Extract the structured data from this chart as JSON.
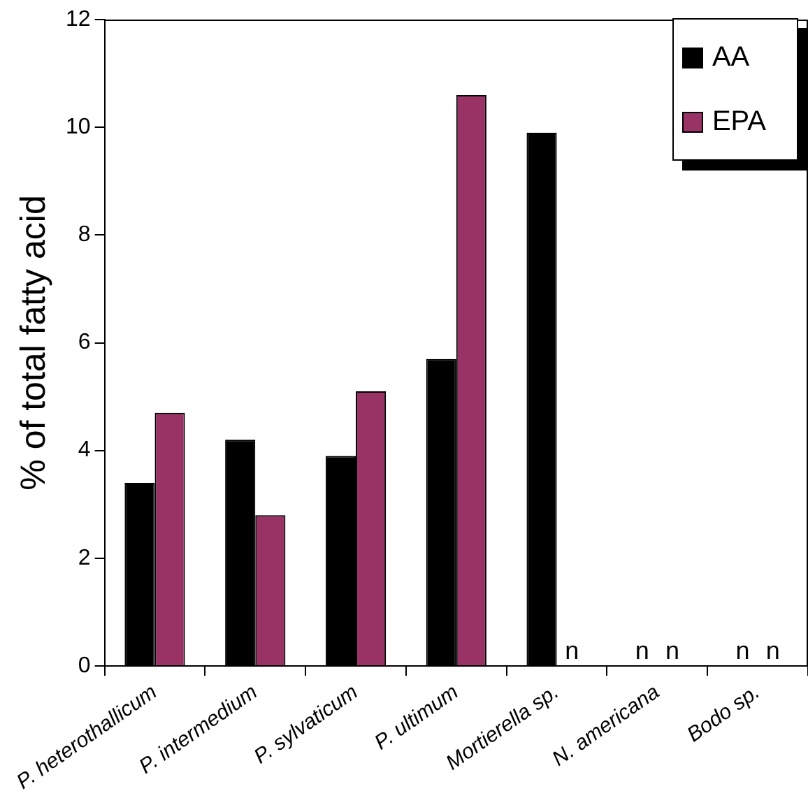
{
  "chart_data": {
    "type": "bar",
    "ylabel": "% of total fatty acid",
    "categories": [
      "P. heterothallicum",
      "P. intermedium",
      "P. sylvaticum",
      "P. ultimum",
      "Mortierella sp.",
      "N. americana",
      "Bodo sp."
    ],
    "series": [
      {
        "name": "AA",
        "color": "#000000",
        "values": [
          3.4,
          4.2,
          3.9,
          5.7,
          9.9,
          null,
          null
        ],
        "value_labels": [
          null,
          null,
          null,
          null,
          null,
          "n",
          "n"
        ]
      },
      {
        "name": "EPA",
        "color": "#993366",
        "values": [
          4.7,
          2.8,
          5.1,
          10.6,
          null,
          null,
          null
        ],
        "value_labels": [
          null,
          null,
          null,
          null,
          "n",
          "n",
          "n"
        ]
      }
    ],
    "ylim": [
      0,
      12
    ],
    "yticks": [
      0,
      2,
      4,
      6,
      8,
      10,
      12
    ],
    "grid": false,
    "legend": "top right"
  }
}
